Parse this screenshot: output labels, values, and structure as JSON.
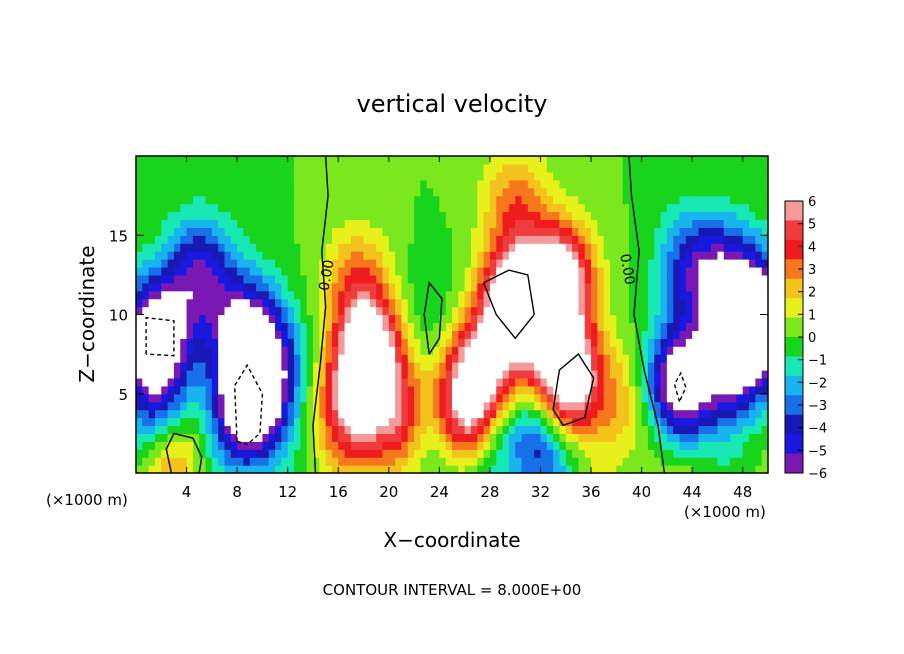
{
  "chart_data": {
    "type": "heatmap",
    "title": "vertical velocity",
    "xlabel": "X−coordinate",
    "ylabel": "Z−coordinate",
    "x_unit_label": "(×1000 m)",
    "y_unit_label": "(×1000 m)",
    "footer": "CONTOUR INTERVAL = 8.000E+00",
    "contour_label": "0.00",
    "xlim": [
      0,
      50
    ],
    "ylim": [
      0,
      20
    ],
    "x_ticks": [
      4,
      8,
      12,
      16,
      20,
      24,
      28,
      32,
      36,
      40,
      44,
      48
    ],
    "x_tick_labels": [
      "4",
      "8",
      "12",
      "16",
      "20",
      "24",
      "28",
      "32",
      "36",
      "40",
      "44",
      "48"
    ],
    "y_ticks": [
      5,
      10,
      15
    ],
    "y_tick_labels": [
      "5",
      "10",
      "15"
    ],
    "colorbar": {
      "range": [
        -6,
        6
      ],
      "tick_values": [
        6,
        5,
        4,
        3,
        2,
        1,
        0,
        -1,
        -2,
        -3,
        -4,
        -5,
        -6
      ],
      "tick_labels": [
        "6",
        "5",
        "4",
        "3",
        "2",
        "1",
        "0",
        "−1",
        "−2",
        "−3",
        "−4",
        "−5",
        "−6"
      ],
      "colors": [
        "#f49a9a",
        "#f03c3c",
        "#ee1c1c",
        "#f7781c",
        "#f4c21c",
        "#e8f01c",
        "#7ae81c",
        "#18d41c",
        "#18e8b4",
        "#18b4f0",
        "#1870e8",
        "#1818b4",
        "#1818e0",
        "#7a18b4"
      ],
      "saturation_color": "#ffffff"
    },
    "features": [
      {
        "x": 1.5,
        "z": 8.5,
        "w": -9
      },
      {
        "x": 5.0,
        "z": 12.5,
        "w": -5
      },
      {
        "x": 2.0,
        "z": 3.5,
        "w": -4
      },
      {
        "x": 9.0,
        "z": 4.5,
        "w": -9
      },
      {
        "x": 8.5,
        "z": 9.0,
        "w": -5.5
      },
      {
        "x": 10.5,
        "z": 7.0,
        "w": -4
      },
      {
        "x": 3.0,
        "z": 1.2,
        "w": 4
      },
      {
        "x": 7.5,
        "z": 1.5,
        "w": -1
      },
      {
        "x": 18.5,
        "z": 7.5,
        "w": 8
      },
      {
        "x": 17.0,
        "z": 4.0,
        "w": 5
      },
      {
        "x": 21.0,
        "z": 3.0,
        "w": 5
      },
      {
        "x": 17.5,
        "z": 12.0,
        "w": 3
      },
      {
        "x": 30.0,
        "z": 10.5,
        "w": 10
      },
      {
        "x": 33.5,
        "z": 12.0,
        "w": 8
      },
      {
        "x": 34.0,
        "z": 6.0,
        "w": 9
      },
      {
        "x": 27.0,
        "z": 6.0,
        "w": 7
      },
      {
        "x": 26.0,
        "z": 3.0,
        "w": 5
      },
      {
        "x": 30.0,
        "z": 17.0,
        "w": 3
      },
      {
        "x": 23.0,
        "z": 10.0,
        "w": -1
      },
      {
        "x": 23.0,
        "z": 2.0,
        "w": -3
      },
      {
        "x": 28.0,
        "z": 2.0,
        "w": -3
      },
      {
        "x": 32.0,
        "z": 2.0,
        "w": -4
      },
      {
        "x": 38.5,
        "z": 4.5,
        "w": 2
      },
      {
        "x": 43.0,
        "z": 5.5,
        "w": -8
      },
      {
        "x": 47.0,
        "z": 7.0,
        "w": -6
      },
      {
        "x": 49.5,
        "z": 9.5,
        "w": -8
      },
      {
        "x": 44.0,
        "z": 13.0,
        "w": -4
      },
      {
        "x": 47.0,
        "z": 12.0,
        "w": -5
      },
      {
        "x": 41.5,
        "z": 1.5,
        "w": 1
      }
    ]
  }
}
